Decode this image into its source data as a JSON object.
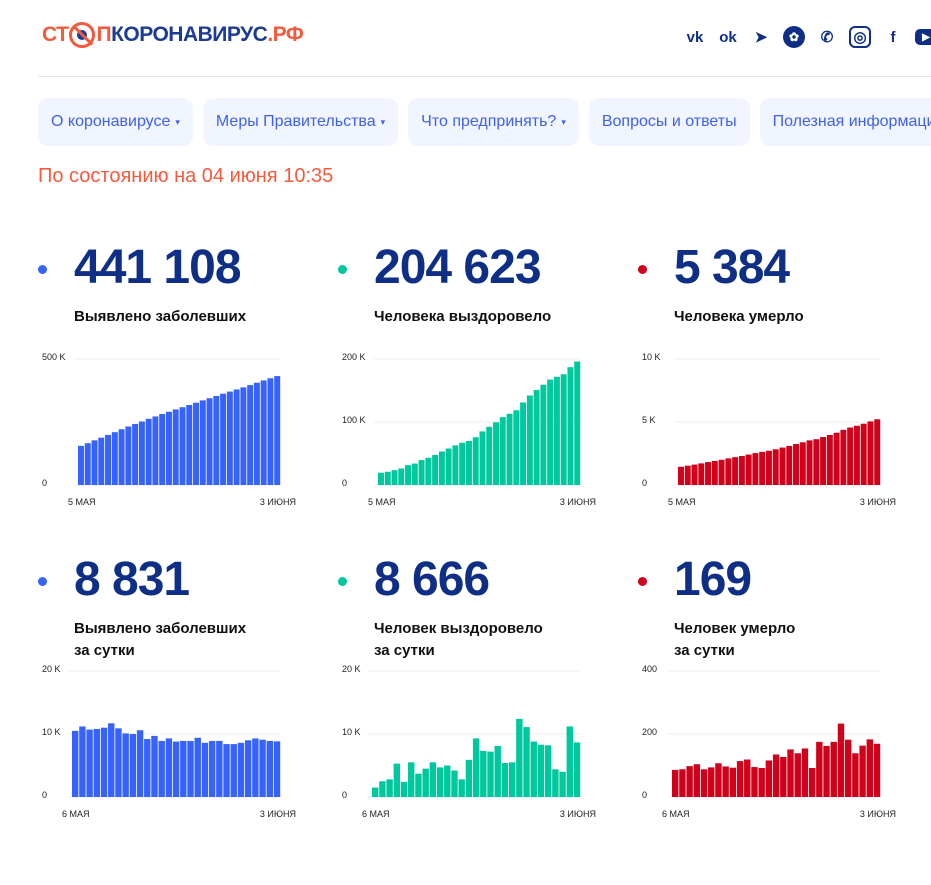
{
  "logo": {
    "part1": "СТ",
    "part2": "П",
    "part3": "КОРОНАВИРУС",
    "part4": ".РФ"
  },
  "social": [
    {
      "icon": "vk-icon",
      "glyph": "vk"
    },
    {
      "icon": "odnoklassniki-icon",
      "glyph": "ok"
    },
    {
      "icon": "telegram-icon",
      "glyph": "➤"
    },
    {
      "icon": "yandex-zen-icon",
      "glyph": "✿"
    },
    {
      "icon": "viber-icon",
      "glyph": "✆"
    },
    {
      "icon": "instagram-icon",
      "glyph": "◎"
    },
    {
      "icon": "facebook-icon",
      "glyph": "f"
    },
    {
      "icon": "youtube-icon",
      "glyph": "▶"
    }
  ],
  "nav": [
    {
      "label": "О коронавирусе",
      "dropdown": true
    },
    {
      "label": "Меры Правительства",
      "dropdown": true
    },
    {
      "label": "Что предпринять?",
      "dropdown": true
    },
    {
      "label": "Вопросы и ответы",
      "dropdown": false
    },
    {
      "label": "Полезная информация",
      "dropdown": false
    }
  ],
  "caret": "▾",
  "date": "По состоянию на 04 июня 10:35",
  "colors": {
    "blue": "#3763fb",
    "green": "#00c89e",
    "red": "#d0021b"
  },
  "stats": [
    {
      "value": "441 108",
      "label": "Выявлено заболевших",
      "label2": "",
      "color": "blue"
    },
    {
      "value": "204 623",
      "label": "Человека выздоровело",
      "label2": "",
      "color": "green"
    },
    {
      "value": "5 384",
      "label": "Человека умерло",
      "label2": "",
      "color": "red"
    },
    {
      "value": "8 831",
      "label": "Выявлено заболевших",
      "label2": "за сутки",
      "color": "blue"
    },
    {
      "value": "8 666",
      "label": "Человек выздоровело",
      "label2": "за сутки",
      "color": "green"
    },
    {
      "value": "169",
      "label": "Человек умерло",
      "label2": "за сутки",
      "color": "red"
    }
  ],
  "chart_data": [
    {
      "type": "bar",
      "color": "blue",
      "ylim": [
        0,
        500000
      ],
      "yticks": [
        {
          "v": 0,
          "t": "0"
        },
        {
          "v": 500000,
          "t": "500 K"
        }
      ],
      "xlabels": [
        "5 МАЯ",
        "3 ИЮНЯ"
      ],
      "values": [
        155400,
        165900,
        177100,
        187800,
        198600,
        209600,
        221300,
        232200,
        242300,
        252200,
        262800,
        272000,
        281700,
        290600,
        299900,
        308700,
        317600,
        326400,
        335800,
        344400,
        353400,
        362300,
        370700,
        379100,
        387600,
        396600,
        405800,
        414900,
        423700,
        432300
      ]
    },
    {
      "type": "bar",
      "color": "green",
      "ylim": [
        0,
        200000
      ],
      "yticks": [
        {
          "v": 0,
          "t": "0"
        },
        {
          "v": 100000,
          "t": "100 K"
        },
        {
          "v": 200000,
          "t": "200 K"
        }
      ],
      "xlabels": [
        "5 МАЯ",
        "3 ИЮНЯ"
      ],
      "values": [
        19500,
        21000,
        23500,
        26300,
        31600,
        34000,
        39500,
        43200,
        47700,
        53200,
        57900,
        62900,
        67100,
        69900,
        75800,
        85100,
        92400,
        99600,
        107700,
        113100,
        118600,
        131000,
        142100,
        150900,
        159200,
        167400,
        171800,
        175800,
        187000,
        196000
      ]
    },
    {
      "type": "bar",
      "color": "red",
      "ylim": [
        0,
        10000
      ],
      "yticks": [
        {
          "v": 0,
          "t": "0"
        },
        {
          "v": 5000,
          "t": "5 K"
        },
        {
          "v": 10000,
          "t": "10 K"
        }
      ],
      "xlabels": [
        "5 МАЯ",
        "3 ИЮНЯ"
      ],
      "values": [
        1445,
        1531,
        1619,
        1717,
        1821,
        1909,
        2003,
        2110,
        2207,
        2300,
        2414,
        2533,
        2628,
        2720,
        2836,
        2971,
        3098,
        3249,
        3388,
        3542,
        3634,
        3809,
        3971,
        4146,
        4379,
        4561,
        4700,
        4863,
        5046,
        5215
      ]
    },
    {
      "type": "bar",
      "color": "blue",
      "ylim": [
        0,
        20000
      ],
      "yticks": [
        {
          "v": 0,
          "t": "0"
        },
        {
          "v": 10000,
          "t": "10 K"
        },
        {
          "v": 20000,
          "t": "20 K"
        }
      ],
      "xlabels": [
        "6 МАЯ",
        "3 ИЮНЯ"
      ],
      "values": [
        10500,
        11200,
        10700,
        10800,
        11000,
        11700,
        10900,
        10100,
        10000,
        10600,
        9200,
        9700,
        8900,
        9300,
        8800,
        8900,
        8900,
        9400,
        8600,
        8900,
        8900,
        8400,
        8400,
        8600,
        9000,
        9300,
        9100,
        8900,
        8831
      ]
    },
    {
      "type": "bar",
      "color": "green",
      "ylim": [
        0,
        20000
      ],
      "yticks": [
        {
          "v": 0,
          "t": "0"
        },
        {
          "v": 10000,
          "t": "10 K"
        },
        {
          "v": 20000,
          "t": "20 K"
        }
      ],
      "xlabels": [
        "6 МАЯ",
        "3 ИЮНЯ"
      ],
      "values": [
        1500,
        2500,
        2800,
        5300,
        2400,
        5500,
        3700,
        4500,
        5500,
        4700,
        5000,
        4200,
        2800,
        5900,
        9300,
        7300,
        7200,
        8100,
        5400,
        5500,
        12400,
        11100,
        8800,
        8300,
        8200,
        4400,
        4000,
        11200,
        8666
      ]
    },
    {
      "type": "bar",
      "color": "red",
      "ylim": [
        0,
        400
      ],
      "yticks": [
        {
          "v": 0,
          "t": "0"
        },
        {
          "v": 200,
          "t": "200"
        },
        {
          "v": 400,
          "t": "400"
        }
      ],
      "xlabels": [
        "6 МАЯ",
        "3 ИЮНЯ"
      ],
      "values": [
        86,
        88,
        98,
        104,
        88,
        94,
        107,
        97,
        93,
        114,
        119,
        95,
        92,
        116,
        135,
        127,
        151,
        139,
        154,
        92,
        175,
        162,
        175,
        233,
        182,
        139,
        163,
        183,
        169
      ]
    }
  ]
}
